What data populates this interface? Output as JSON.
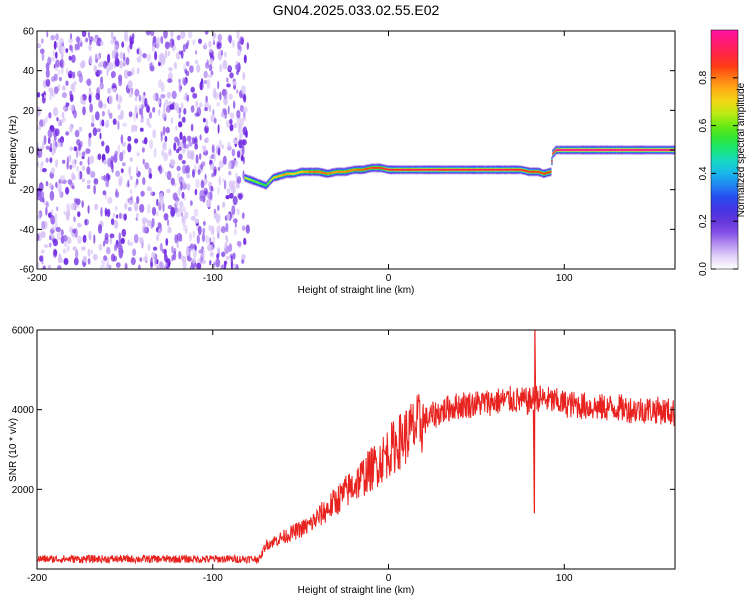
{
  "title": "GN04.2025.033.02.55.E02",
  "colors": {
    "spectrogram_noise": "#7f2fe6",
    "snr_line": "#e8231f",
    "colormap": [
      "#ffffff",
      "#d6c2f5",
      "#8a55e8",
      "#5a2fd8",
      "#2a3cf0",
      "#1f8cf0",
      "#14d2e6",
      "#18e67a",
      "#3ce614",
      "#b4ee14",
      "#ffd214",
      "#ff8c14",
      "#ff3214",
      "#ff1e64",
      "#ff14a0"
    ]
  },
  "chart_data": [
    {
      "type": "heatmap",
      "xlabel": "Height of straight line (km)",
      "ylabel": "Frequency (Hz)",
      "xlim": [
        -200,
        163
      ],
      "ylim": [
        -60,
        60
      ],
      "x_ticks": [
        -200,
        -100,
        0,
        100
      ],
      "y_ticks": [
        -60,
        -40,
        -20,
        0,
        20,
        40,
        60
      ],
      "colorbar": {
        "label": "Normalized spectral amplitude",
        "range": [
          0,
          1
        ],
        "ticks": [
          0.0,
          0.2,
          0.4,
          0.6,
          0.8
        ]
      },
      "noise_region": {
        "x_range": [
          -200,
          -80
        ],
        "freq_range": [
          -60,
          60
        ],
        "amplitude": 0.1
      },
      "signal_track": {
        "x": [
          -82,
          -76,
          -70,
          -66,
          -62,
          -58,
          -54,
          -50,
          -45,
          -40,
          -35,
          -30,
          -25,
          -20,
          -15,
          -10,
          -5,
          0,
          20,
          40,
          60,
          75,
          80,
          85,
          88,
          92,
          93,
          95,
          100,
          120,
          140,
          163
        ],
        "freq": [
          -14,
          -16,
          -18,
          -14,
          -13,
          -12,
          -12,
          -11,
          -11,
          -11,
          -12,
          -11,
          -11,
          -10,
          -10,
          -9,
          -9,
          -10,
          -10,
          -10,
          -10,
          -10,
          -11,
          -11,
          -12,
          -11,
          -2,
          0,
          0,
          0,
          0,
          0
        ],
        "amplitude": [
          0.65,
          0.6,
          0.55,
          0.7,
          0.75,
          0.75,
          0.7,
          0.75,
          0.8,
          0.82,
          0.8,
          0.78,
          0.8,
          0.8,
          0.82,
          0.85,
          0.85,
          0.9,
          0.92,
          0.92,
          0.92,
          0.9,
          0.88,
          0.86,
          0.85,
          0.85,
          0.95,
          0.98,
          0.99,
          0.99,
          0.99,
          0.99
        ]
      }
    },
    {
      "type": "line",
      "xlabel": "Height of straight line (km)",
      "ylabel": "SNR (10 * v/v)",
      "xlim": [
        -200,
        163
      ],
      "ylim": [
        0,
        6000
      ],
      "x_ticks": [
        -200,
        -100,
        0,
        100
      ],
      "y_ticks": [
        2000,
        4000,
        6000
      ],
      "series": [
        {
          "x": [
            -200,
            -180,
            -160,
            -140,
            -120,
            -100,
            -90,
            -80,
            -73,
            -70,
            -65,
            -60,
            -55,
            -50,
            -45,
            -40,
            -35,
            -30,
            -25,
            -20,
            -15,
            -10,
            -5,
            0,
            5,
            10,
            15,
            20,
            25,
            30,
            35,
            40,
            50,
            60,
            70,
            80,
            84,
            90,
            100,
            110,
            120,
            130,
            140,
            150,
            160,
            163
          ],
          "values": [
            250,
            250,
            250,
            250,
            250,
            250,
            250,
            250,
            260,
            600,
            700,
            800,
            900,
            1000,
            1100,
            1300,
            1500,
            1700,
            1900,
            2100,
            2300,
            2500,
            2700,
            2950,
            3150,
            3350,
            3550,
            3700,
            3850,
            3950,
            4050,
            4100,
            4150,
            4200,
            4250,
            4200,
            4300,
            4250,
            4150,
            4100,
            4050,
            4050,
            4000,
            4000,
            3950,
            3900
          ],
          "spikes": [
            {
              "x": 83,
              "values": [
                1400,
                6000
              ]
            }
          ]
        }
      ]
    }
  ]
}
